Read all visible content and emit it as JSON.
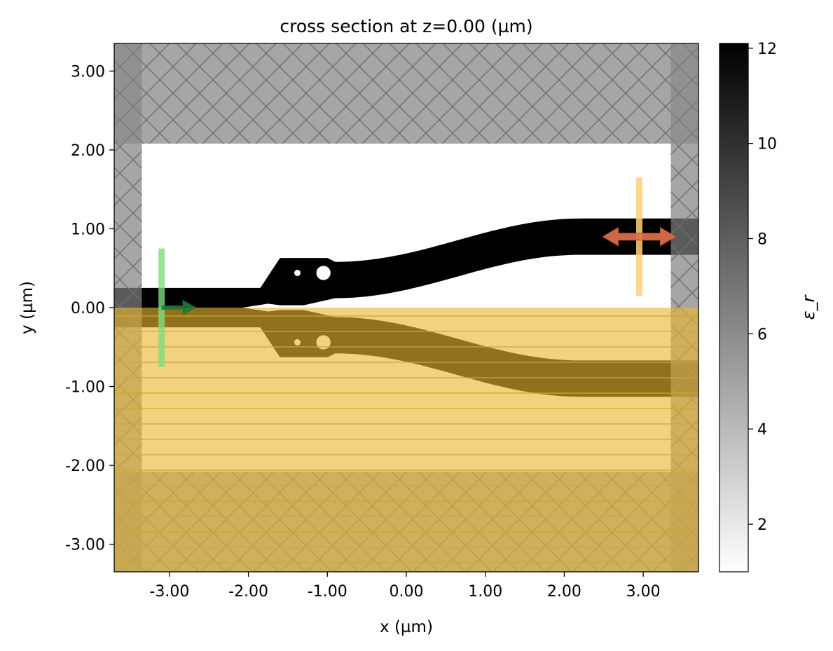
{
  "chart_data": {
    "type": "heatmap",
    "title": "cross section at z=0.00 (µm)",
    "xlabel": "x (µm)",
    "ylabel": "y (µm)",
    "xlim": [
      -3.7,
      3.7
    ],
    "ylim": [
      -3.35,
      3.35
    ],
    "x_ticks": [
      -3,
      -2,
      -1,
      0,
      1,
      2,
      3
    ],
    "y_ticks": [
      -3,
      -2,
      -1,
      0,
      1,
      2,
      3
    ],
    "x_tick_labels": [
      "-3.00",
      "-2.00",
      "-1.00",
      "0.00",
      "1.00",
      "2.00",
      "3.00"
    ],
    "y_tick_labels": [
      "-3.00",
      "-2.00",
      "-1.00",
      "0.00",
      "1.00",
      "2.00",
      "3.00"
    ],
    "colorbar": {
      "label": "ε_r",
      "range": [
        1.0,
        12.1
      ],
      "ticks": [
        2,
        4,
        6,
        8,
        10,
        12
      ],
      "tick_labels": [
        "2",
        "4",
        "6",
        "8",
        "10",
        "12"
      ],
      "colormap": "greys"
    },
    "pml": {
      "x_inner": [
        -3.35,
        3.35
      ],
      "y_inner": [
        -2.08,
        2.08
      ],
      "color": "#808080"
    },
    "symmetry_region": {
      "y_range": [
        -3.35,
        0.0
      ],
      "color": "#e8b830"
    },
    "source": {
      "x": -3.1,
      "y_range": [
        -0.75,
        0.75
      ],
      "direction": "+x",
      "color": "#7fdc7f",
      "arrow_color": "#1f7a3a"
    },
    "monitor": {
      "x": 2.95,
      "y_range": [
        0.15,
        1.65
      ],
      "direction": "±x",
      "color": "#ffd080",
      "arrow_color": "#e0704a"
    },
    "geometry": {
      "permittivity": 12.1,
      "input_waveguide": {
        "x_range": [
          -3.7,
          -1.85
        ],
        "half_width": 0.25
      },
      "taper": {
        "x_range": [
          -1.85,
          -1.6
        ],
        "half_width_end": 0.63
      },
      "s_bend": {
        "x_range": [
          -0.9,
          2.2
        ],
        "center_y_start": 0.35,
        "center_y_end": 0.9,
        "half_width": 0.23
      },
      "output_waveguide": {
        "x_range": [
          2.2,
          3.7
        ],
        "center_y": 0.9,
        "half_width": 0.23
      },
      "holes": [
        {
          "x": -1.38,
          "y": 0.44,
          "r": 0.04
        },
        {
          "x": -1.05,
          "y": 0.44,
          "r": 0.09
        }
      ]
    }
  }
}
